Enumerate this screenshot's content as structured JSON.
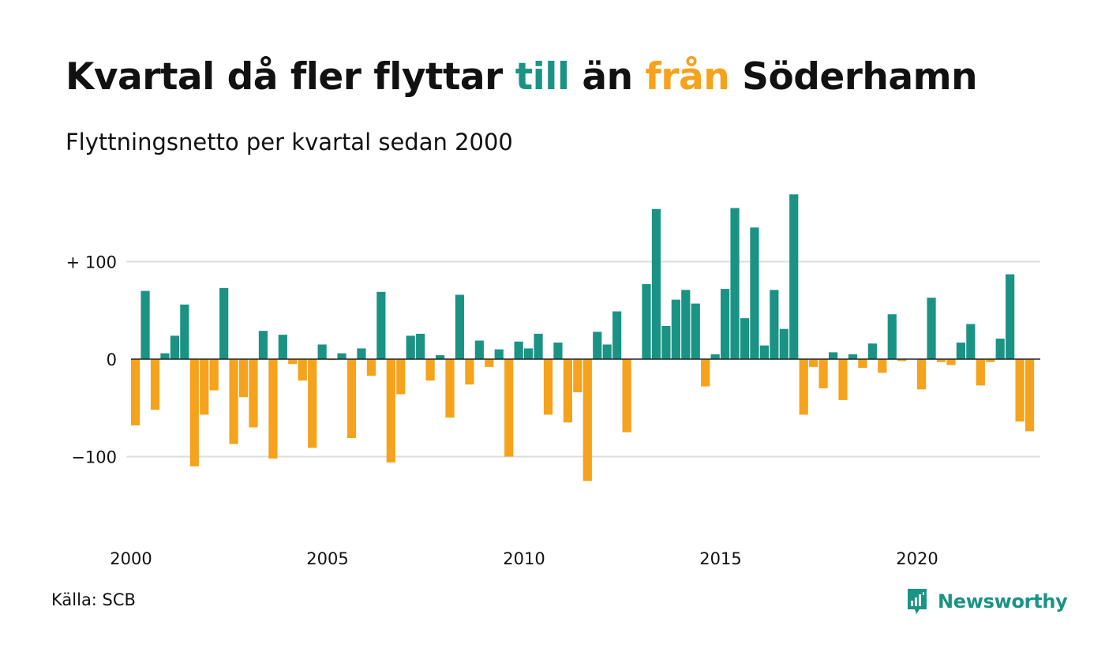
{
  "header": {
    "title_parts": [
      "Kvartal då fler flyttar ",
      "till",
      " än ",
      "från",
      " Söderhamn"
    ],
    "subtitle": "Flyttningsnetto per kvartal sedan 2000"
  },
  "colors": {
    "positive": "#1a9385",
    "negative": "#f5a21c",
    "grid": "#dddddd",
    "zero_line": "#222222"
  },
  "chart_data": {
    "type": "bar",
    "x_start": "2000-Q1",
    "x_ticks": [
      "2000",
      "2005",
      "2010",
      "2015",
      "2020"
    ],
    "y_ticks": [
      {
        "value": 100,
        "label": "+ 100"
      },
      {
        "value": 0,
        "label": "0"
      },
      {
        "value": -100,
        "label": "−100"
      }
    ],
    "ylim": [
      -185,
      175
    ],
    "grid": true,
    "values": [
      -68,
      70,
      -52,
      6,
      24,
      56,
      -110,
      -57,
      -32,
      73,
      -87,
      -39,
      -70,
      29,
      -102,
      25,
      -5,
      -22,
      -91,
      15,
      -1,
      6,
      -81,
      11,
      -17,
      69,
      -106,
      -36,
      24,
      26,
      -22,
      4,
      -60,
      66,
      -26,
      19,
      -8,
      10,
      -100,
      18,
      11,
      26,
      -57,
      17,
      -65,
      -34,
      -125,
      28,
      15,
      49,
      -75,
      0,
      77,
      154,
      34,
      61,
      71,
      57,
      -28,
      5,
      72,
      155,
      42,
      135,
      14,
      71,
      31,
      169,
      -57,
      -8,
      -30,
      7,
      -42,
      5,
      -9,
      16,
      -14,
      46,
      -2,
      0,
      -31,
      63,
      -3,
      -6,
      17,
      36,
      -27,
      -3,
      21,
      87,
      -64,
      -74
    ]
  },
  "footer": {
    "source": "Källa: SCB",
    "brand": "Newsworthy"
  }
}
